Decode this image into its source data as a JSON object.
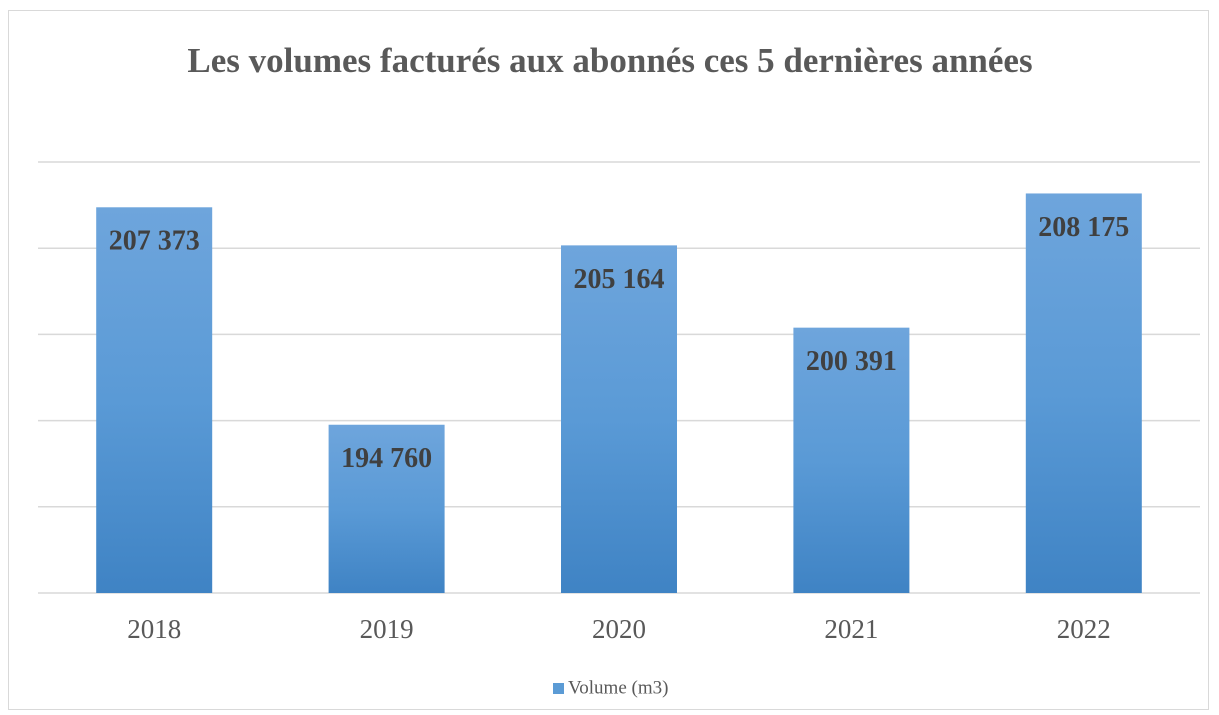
{
  "chart_data": {
    "type": "bar",
    "title": "Les volumes facturés aux abonnés ces 5 dernières années",
    "categories": [
      "2018",
      "2019",
      "2020",
      "2021",
      "2022"
    ],
    "series": [
      {
        "name": "Volume (m3)",
        "color": "#5b9bd5",
        "values": [
          207373,
          194760,
          205164,
          200391,
          208175
        ],
        "value_labels": [
          "207 373",
          "194 760",
          "205 164",
          "200 391",
          "208 175"
        ]
      }
    ],
    "ylim": [
      185000,
      210000
    ],
    "yticks": [
      185000,
      190000,
      195000,
      200000,
      205000,
      210000
    ],
    "grid": true,
    "legend": "bottom"
  }
}
